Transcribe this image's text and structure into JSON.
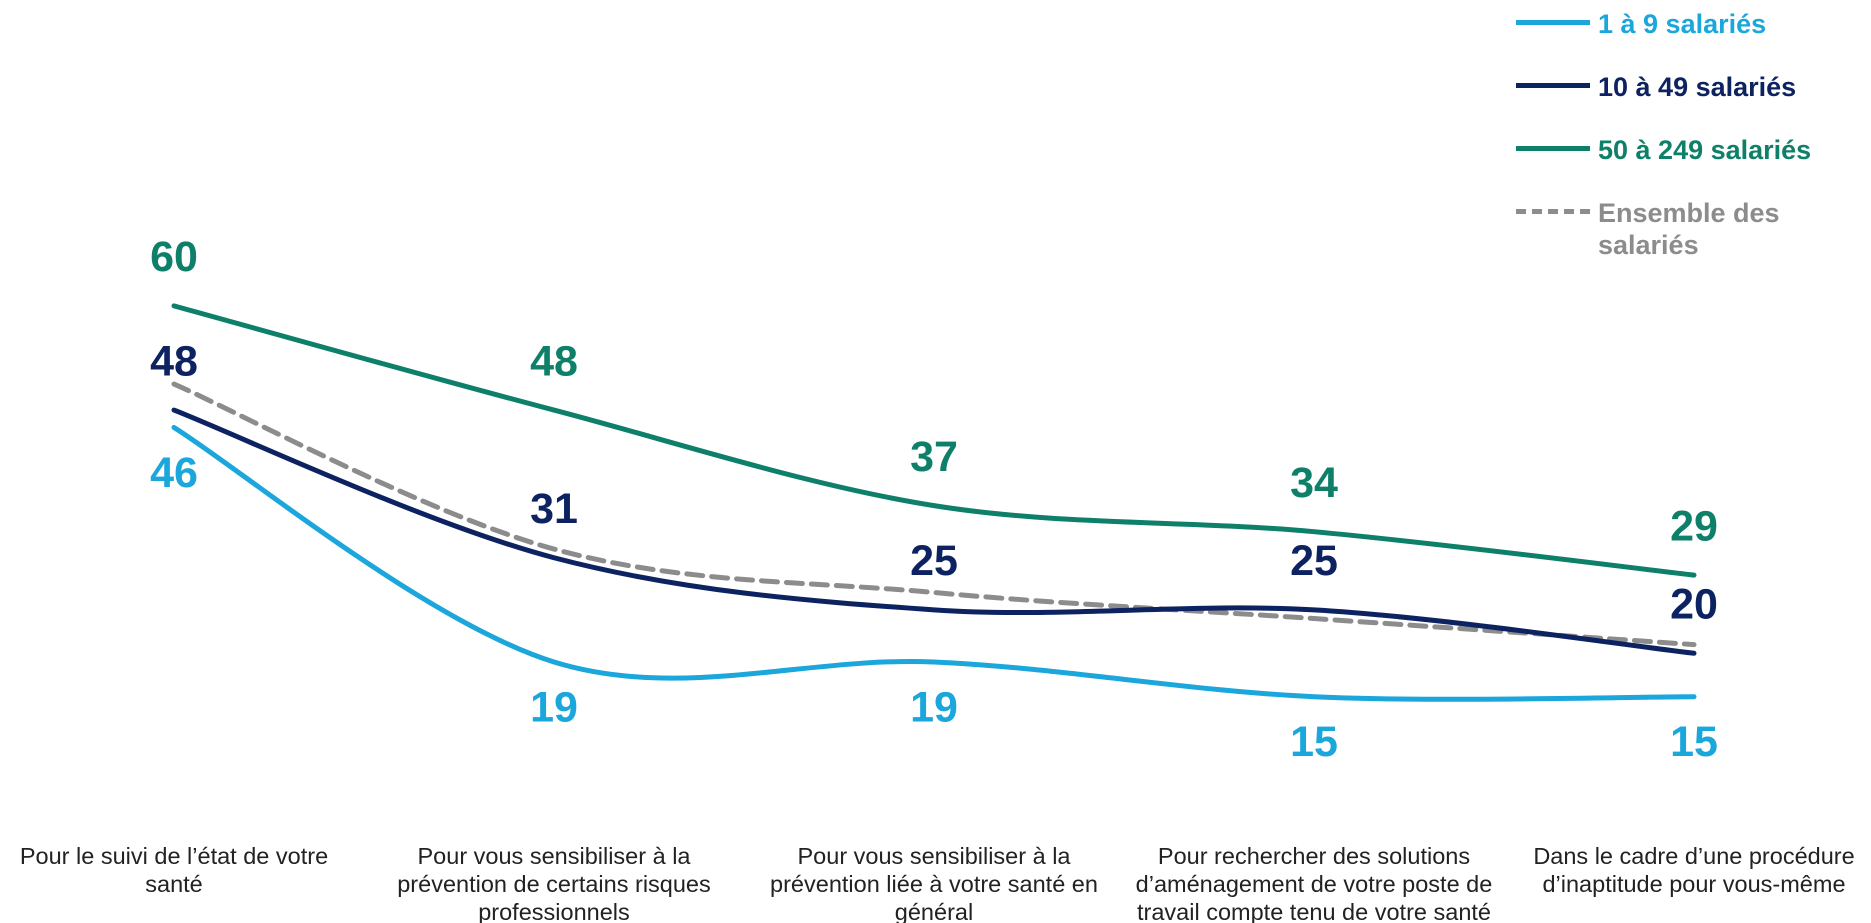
{
  "chart_data": {
    "type": "line",
    "categories": [
      "Pour le suivi de l’état de votre santé",
      "Pour vous sensibiliser à la prévention de certains risques professionnels",
      "Pour vous sensibiliser à la prévention liée à votre santé en général",
      "Pour rechercher des solutions d’aménagement de votre poste de travail compte tenu de votre santé",
      "Dans le cadre d’une procédure d’inaptitude pour vous-même"
    ],
    "series": [
      {
        "name": "1 à 9 salariés",
        "color": "#1ba6dc",
        "values": [
          46,
          19,
          19,
          15,
          15
        ]
      },
      {
        "name": "10 à 49 salariés",
        "color": "#0d2260",
        "values": [
          48,
          31,
          25,
          25,
          20
        ]
      },
      {
        "name": "50 à 249 salariés",
        "color": "#0e806a",
        "values": [
          60,
          48,
          37,
          34,
          29
        ]
      },
      {
        "name": "Ensemble des salariés",
        "color": "#8c8c8c",
        "dashed": true,
        "values": [
          51,
          32,
          27,
          24,
          21
        ]
      }
    ],
    "ylim": [
      0,
      70
    ],
    "legend": "top-right"
  }
}
